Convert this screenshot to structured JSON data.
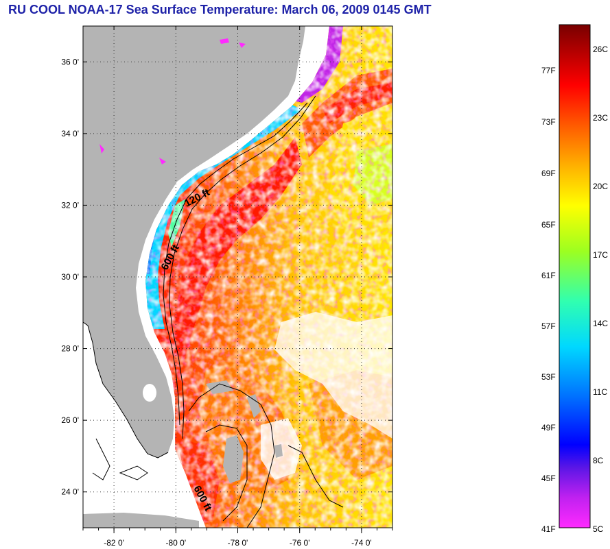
{
  "title": "RU COOL  NOAA-17  Sea Surface Temperature:  March 06, 2009 0145 GMT",
  "map": {
    "lon_range": [
      -83,
      -73
    ],
    "lat_range": [
      23,
      37
    ],
    "lat_ticks": [
      {
        "value": 36,
        "label": "36 0'"
      },
      {
        "value": 34,
        "label": "34 0'"
      },
      {
        "value": 32,
        "label": "32 0'"
      },
      {
        "value": 30,
        "label": "30 0'"
      },
      {
        "value": 28,
        "label": "28 0'"
      },
      {
        "value": 26,
        "label": "26 0'"
      },
      {
        "value": 24,
        "label": "24 0'"
      }
    ],
    "lon_ticks": [
      {
        "value": -82,
        "label": "-82 0'"
      },
      {
        "value": -80,
        "label": "-80 0'"
      },
      {
        "value": -78,
        "label": "-78 0'"
      },
      {
        "value": -76,
        "label": "-76 0'"
      },
      {
        "value": -74,
        "label": "-74 0'"
      }
    ],
    "depth_labels": [
      {
        "text": "120 ft"
      },
      {
        "text": "600 ft"
      },
      {
        "text": "600 ft"
      }
    ],
    "colors": {
      "land": "#b4b4b4",
      "cloud": "#ffffff",
      "coastline": "#000000"
    }
  },
  "colorbar": {
    "fahrenheit_labels": [
      "77F",
      "73F",
      "69F",
      "65F",
      "61F",
      "57F",
      "53F",
      "49F",
      "45F",
      "41F"
    ],
    "celsius_labels": [
      "26C",
      "23C",
      "20C",
      "17C",
      "14C",
      "11C",
      "8C",
      "5C"
    ],
    "range_c": [
      5,
      27
    ],
    "gradient_stops": [
      "#ff2aff",
      "#8a1ae0",
      "#0000ff",
      "#0090ff",
      "#00e6ff",
      "#40ff9a",
      "#c8ff00",
      "#ffff00",
      "#ffa500",
      "#ff5000",
      "#ff0000",
      "#b00000",
      "#7a0000"
    ]
  }
}
